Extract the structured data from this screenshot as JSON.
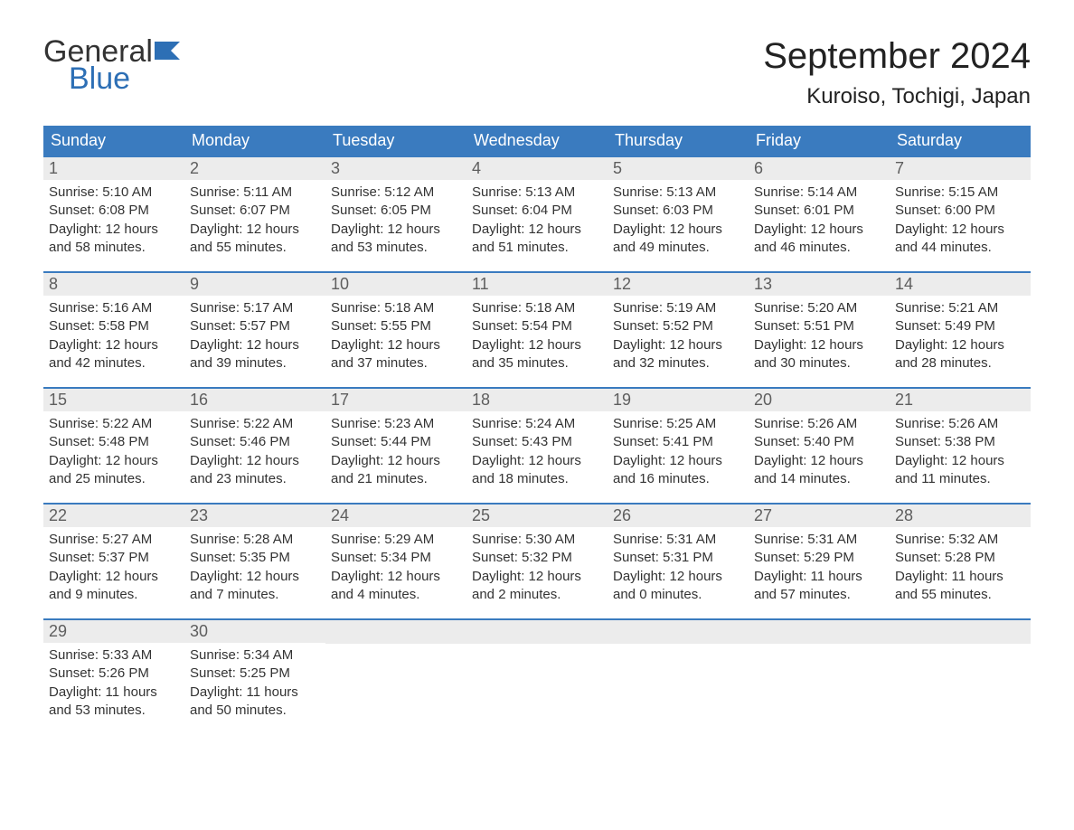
{
  "logo": {
    "line1": "General",
    "line2": "Blue"
  },
  "title": "September 2024",
  "location": "Kuroiso, Tochigi, Japan",
  "colors": {
    "header_bg": "#3a7bbf",
    "header_text": "#ffffff",
    "daynum_bg": "#ececec",
    "daynum_text": "#5e5e5e",
    "body_text": "#333333",
    "logo_blue": "#2d6fb5",
    "row_border": "#3a7bbf"
  },
  "day_headers": [
    "Sunday",
    "Monday",
    "Tuesday",
    "Wednesday",
    "Thursday",
    "Friday",
    "Saturday"
  ],
  "weeks": [
    [
      {
        "num": "1",
        "sunrise": "Sunrise: 5:10 AM",
        "sunset": "Sunset: 6:08 PM",
        "day1": "Daylight: 12 hours",
        "day2": "and 58 minutes."
      },
      {
        "num": "2",
        "sunrise": "Sunrise: 5:11 AM",
        "sunset": "Sunset: 6:07 PM",
        "day1": "Daylight: 12 hours",
        "day2": "and 55 minutes."
      },
      {
        "num": "3",
        "sunrise": "Sunrise: 5:12 AM",
        "sunset": "Sunset: 6:05 PM",
        "day1": "Daylight: 12 hours",
        "day2": "and 53 minutes."
      },
      {
        "num": "4",
        "sunrise": "Sunrise: 5:13 AM",
        "sunset": "Sunset: 6:04 PM",
        "day1": "Daylight: 12 hours",
        "day2": "and 51 minutes."
      },
      {
        "num": "5",
        "sunrise": "Sunrise: 5:13 AM",
        "sunset": "Sunset: 6:03 PM",
        "day1": "Daylight: 12 hours",
        "day2": "and 49 minutes."
      },
      {
        "num": "6",
        "sunrise": "Sunrise: 5:14 AM",
        "sunset": "Sunset: 6:01 PM",
        "day1": "Daylight: 12 hours",
        "day2": "and 46 minutes."
      },
      {
        "num": "7",
        "sunrise": "Sunrise: 5:15 AM",
        "sunset": "Sunset: 6:00 PM",
        "day1": "Daylight: 12 hours",
        "day2": "and 44 minutes."
      }
    ],
    [
      {
        "num": "8",
        "sunrise": "Sunrise: 5:16 AM",
        "sunset": "Sunset: 5:58 PM",
        "day1": "Daylight: 12 hours",
        "day2": "and 42 minutes."
      },
      {
        "num": "9",
        "sunrise": "Sunrise: 5:17 AM",
        "sunset": "Sunset: 5:57 PM",
        "day1": "Daylight: 12 hours",
        "day2": "and 39 minutes."
      },
      {
        "num": "10",
        "sunrise": "Sunrise: 5:18 AM",
        "sunset": "Sunset: 5:55 PM",
        "day1": "Daylight: 12 hours",
        "day2": "and 37 minutes."
      },
      {
        "num": "11",
        "sunrise": "Sunrise: 5:18 AM",
        "sunset": "Sunset: 5:54 PM",
        "day1": "Daylight: 12 hours",
        "day2": "and 35 minutes."
      },
      {
        "num": "12",
        "sunrise": "Sunrise: 5:19 AM",
        "sunset": "Sunset: 5:52 PM",
        "day1": "Daylight: 12 hours",
        "day2": "and 32 minutes."
      },
      {
        "num": "13",
        "sunrise": "Sunrise: 5:20 AM",
        "sunset": "Sunset: 5:51 PM",
        "day1": "Daylight: 12 hours",
        "day2": "and 30 minutes."
      },
      {
        "num": "14",
        "sunrise": "Sunrise: 5:21 AM",
        "sunset": "Sunset: 5:49 PM",
        "day1": "Daylight: 12 hours",
        "day2": "and 28 minutes."
      }
    ],
    [
      {
        "num": "15",
        "sunrise": "Sunrise: 5:22 AM",
        "sunset": "Sunset: 5:48 PM",
        "day1": "Daylight: 12 hours",
        "day2": "and 25 minutes."
      },
      {
        "num": "16",
        "sunrise": "Sunrise: 5:22 AM",
        "sunset": "Sunset: 5:46 PM",
        "day1": "Daylight: 12 hours",
        "day2": "and 23 minutes."
      },
      {
        "num": "17",
        "sunrise": "Sunrise: 5:23 AM",
        "sunset": "Sunset: 5:44 PM",
        "day1": "Daylight: 12 hours",
        "day2": "and 21 minutes."
      },
      {
        "num": "18",
        "sunrise": "Sunrise: 5:24 AM",
        "sunset": "Sunset: 5:43 PM",
        "day1": "Daylight: 12 hours",
        "day2": "and 18 minutes."
      },
      {
        "num": "19",
        "sunrise": "Sunrise: 5:25 AM",
        "sunset": "Sunset: 5:41 PM",
        "day1": "Daylight: 12 hours",
        "day2": "and 16 minutes."
      },
      {
        "num": "20",
        "sunrise": "Sunrise: 5:26 AM",
        "sunset": "Sunset: 5:40 PM",
        "day1": "Daylight: 12 hours",
        "day2": "and 14 minutes."
      },
      {
        "num": "21",
        "sunrise": "Sunrise: 5:26 AM",
        "sunset": "Sunset: 5:38 PM",
        "day1": "Daylight: 12 hours",
        "day2": "and 11 minutes."
      }
    ],
    [
      {
        "num": "22",
        "sunrise": "Sunrise: 5:27 AM",
        "sunset": "Sunset: 5:37 PM",
        "day1": "Daylight: 12 hours",
        "day2": "and 9 minutes."
      },
      {
        "num": "23",
        "sunrise": "Sunrise: 5:28 AM",
        "sunset": "Sunset: 5:35 PM",
        "day1": "Daylight: 12 hours",
        "day2": "and 7 minutes."
      },
      {
        "num": "24",
        "sunrise": "Sunrise: 5:29 AM",
        "sunset": "Sunset: 5:34 PM",
        "day1": "Daylight: 12 hours",
        "day2": "and 4 minutes."
      },
      {
        "num": "25",
        "sunrise": "Sunrise: 5:30 AM",
        "sunset": "Sunset: 5:32 PM",
        "day1": "Daylight: 12 hours",
        "day2": "and 2 minutes."
      },
      {
        "num": "26",
        "sunrise": "Sunrise: 5:31 AM",
        "sunset": "Sunset: 5:31 PM",
        "day1": "Daylight: 12 hours",
        "day2": "and 0 minutes."
      },
      {
        "num": "27",
        "sunrise": "Sunrise: 5:31 AM",
        "sunset": "Sunset: 5:29 PM",
        "day1": "Daylight: 11 hours",
        "day2": "and 57 minutes."
      },
      {
        "num": "28",
        "sunrise": "Sunrise: 5:32 AM",
        "sunset": "Sunset: 5:28 PM",
        "day1": "Daylight: 11 hours",
        "day2": "and 55 minutes."
      }
    ],
    [
      {
        "num": "29",
        "sunrise": "Sunrise: 5:33 AM",
        "sunset": "Sunset: 5:26 PM",
        "day1": "Daylight: 11 hours",
        "day2": "and 53 minutes."
      },
      {
        "num": "30",
        "sunrise": "Sunrise: 5:34 AM",
        "sunset": "Sunset: 5:25 PM",
        "day1": "Daylight: 11 hours",
        "day2": "and 50 minutes."
      },
      {
        "empty": true
      },
      {
        "empty": true
      },
      {
        "empty": true
      },
      {
        "empty": true
      },
      {
        "empty": true
      }
    ]
  ]
}
